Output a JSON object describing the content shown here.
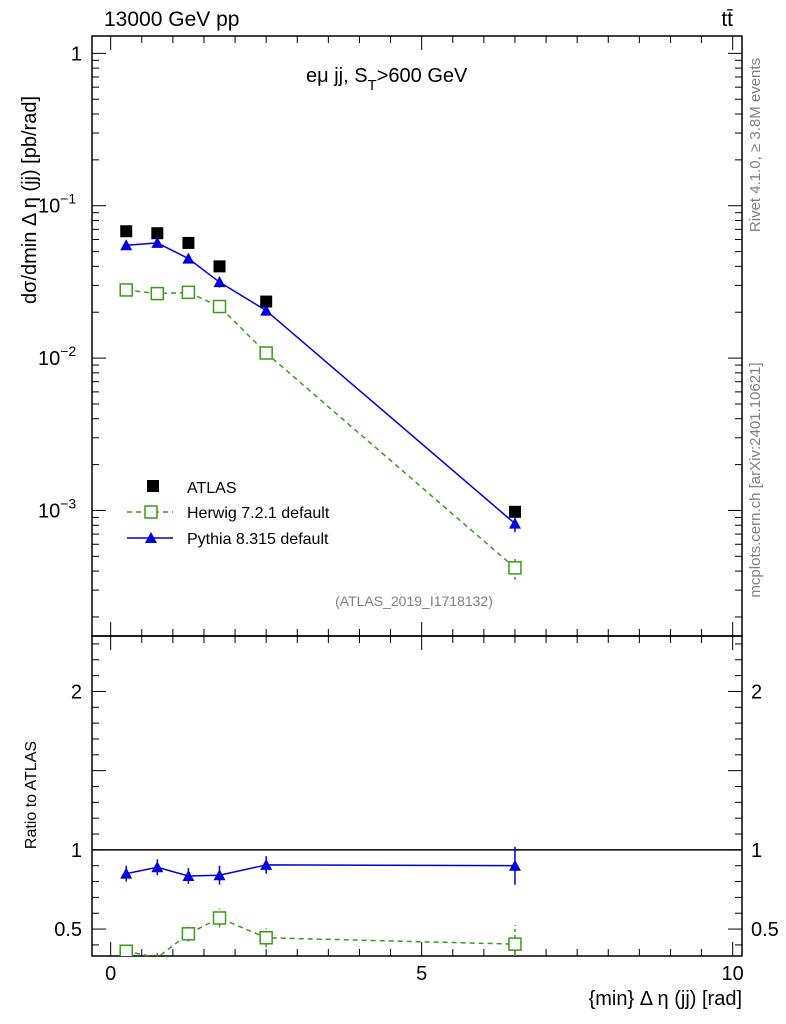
{
  "header": {
    "energy_label": "13000 GeV pp",
    "process_label": "tt̄"
  },
  "side": {
    "rivet_label": "Rivet 4.1.0, ≥ 3.8M events",
    "mcplots_label": "mcplots.cern.ch [arXiv:2401.10621]"
  },
  "chart_data": [
    {
      "type": "scatter",
      "panel": "main",
      "title": "eμ jj, S_T>600 GeV",
      "title_main": "eμ jj, S",
      "title_sub": "T",
      "title_tail": ">600 GeV",
      "ylabel": "dσ/dmin Δ η (jj) [pb/rad]",
      "xlabel": "{min} Δ η (jj) [rad]",
      "yscale": "log",
      "ylim": [
        0.00015,
        1.3
      ],
      "xlim": [
        -0.3,
        10.15
      ],
      "x_ticks": [
        0,
        5,
        10
      ],
      "x_tick_labels": [
        "0",
        "5",
        "10"
      ],
      "y_ticks": [
        {
          "value": 1,
          "label": "1"
        },
        {
          "value": 0.1,
          "label": "10",
          "exp": "−1"
        },
        {
          "value": 0.01,
          "label": "10",
          "exp": "−2"
        },
        {
          "value": 0.001,
          "label": "10",
          "exp": "−3"
        }
      ],
      "watermark": "(ATLAS_2019_I1718132)",
      "legend_position": "bottom-left",
      "series": [
        {
          "name": "ATLAS",
          "color": "#000000",
          "marker": "square-filled",
          "line": "none",
          "x": [
            0.25,
            0.75,
            1.25,
            1.75,
            2.5,
            6.5
          ],
          "y": [
            0.068,
            0.066,
            0.057,
            0.04,
            0.0235,
            0.00098
          ],
          "err": [
            0,
            0,
            0,
            0,
            0,
            0
          ]
        },
        {
          "name": "Herwig 7.2.1 default",
          "color": "#3a9a1a",
          "marker": "square-open",
          "line": "dashed",
          "x": [
            0.25,
            0.75,
            1.25,
            1.75,
            2.5,
            6.5
          ],
          "y": [
            0.028,
            0.0265,
            0.027,
            0.0218,
            0.0108,
            0.00042
          ],
          "err": [
            0.0015,
            0.0015,
            0.0015,
            0.0015,
            0.0007,
            7e-05
          ]
        },
        {
          "name": "Pythia 8.315 default",
          "color": "#0000dd",
          "marker": "triangle-filled",
          "line": "solid",
          "x": [
            0.25,
            0.75,
            1.25,
            1.75,
            2.5,
            6.5
          ],
          "y": [
            0.055,
            0.057,
            0.045,
            0.0315,
            0.0205,
            0.00082
          ],
          "err": [
            0.003,
            0.003,
            0.003,
            0.0025,
            0.0015,
            0.0001
          ]
        }
      ]
    },
    {
      "type": "scatter",
      "panel": "ratio",
      "ylabel": "Ratio to ATLAS",
      "yscale": "linear",
      "ylim": [
        0.33,
        2.35
      ],
      "reference_line": 1,
      "y_ticks": [
        {
          "value": 0.5,
          "label": "0.5"
        },
        {
          "value": 1,
          "label": "1"
        },
        {
          "value": 2,
          "label": "2"
        }
      ],
      "series": [
        {
          "name": "Herwig 7.2.1 default",
          "color": "#3a9a1a",
          "marker": "square-open",
          "line": "dashed",
          "x": [
            0.25,
            0.75,
            1.25,
            1.75,
            2.5,
            6.5
          ],
          "y": [
            0.36,
            0.32,
            0.47,
            0.57,
            0.445,
            0.405
          ],
          "err": [
            0.04,
            0.03,
            0.05,
            0.06,
            0.06,
            0.12
          ]
        },
        {
          "name": "Pythia 8.315 default",
          "color": "#0000dd",
          "marker": "triangle-filled",
          "line": "solid",
          "x": [
            0.25,
            0.75,
            1.25,
            1.75,
            2.5,
            6.5
          ],
          "y": [
            0.85,
            0.89,
            0.835,
            0.84,
            0.905,
            0.9
          ],
          "err": [
            0.05,
            0.05,
            0.05,
            0.06,
            0.055,
            0.12
          ]
        }
      ]
    }
  ]
}
